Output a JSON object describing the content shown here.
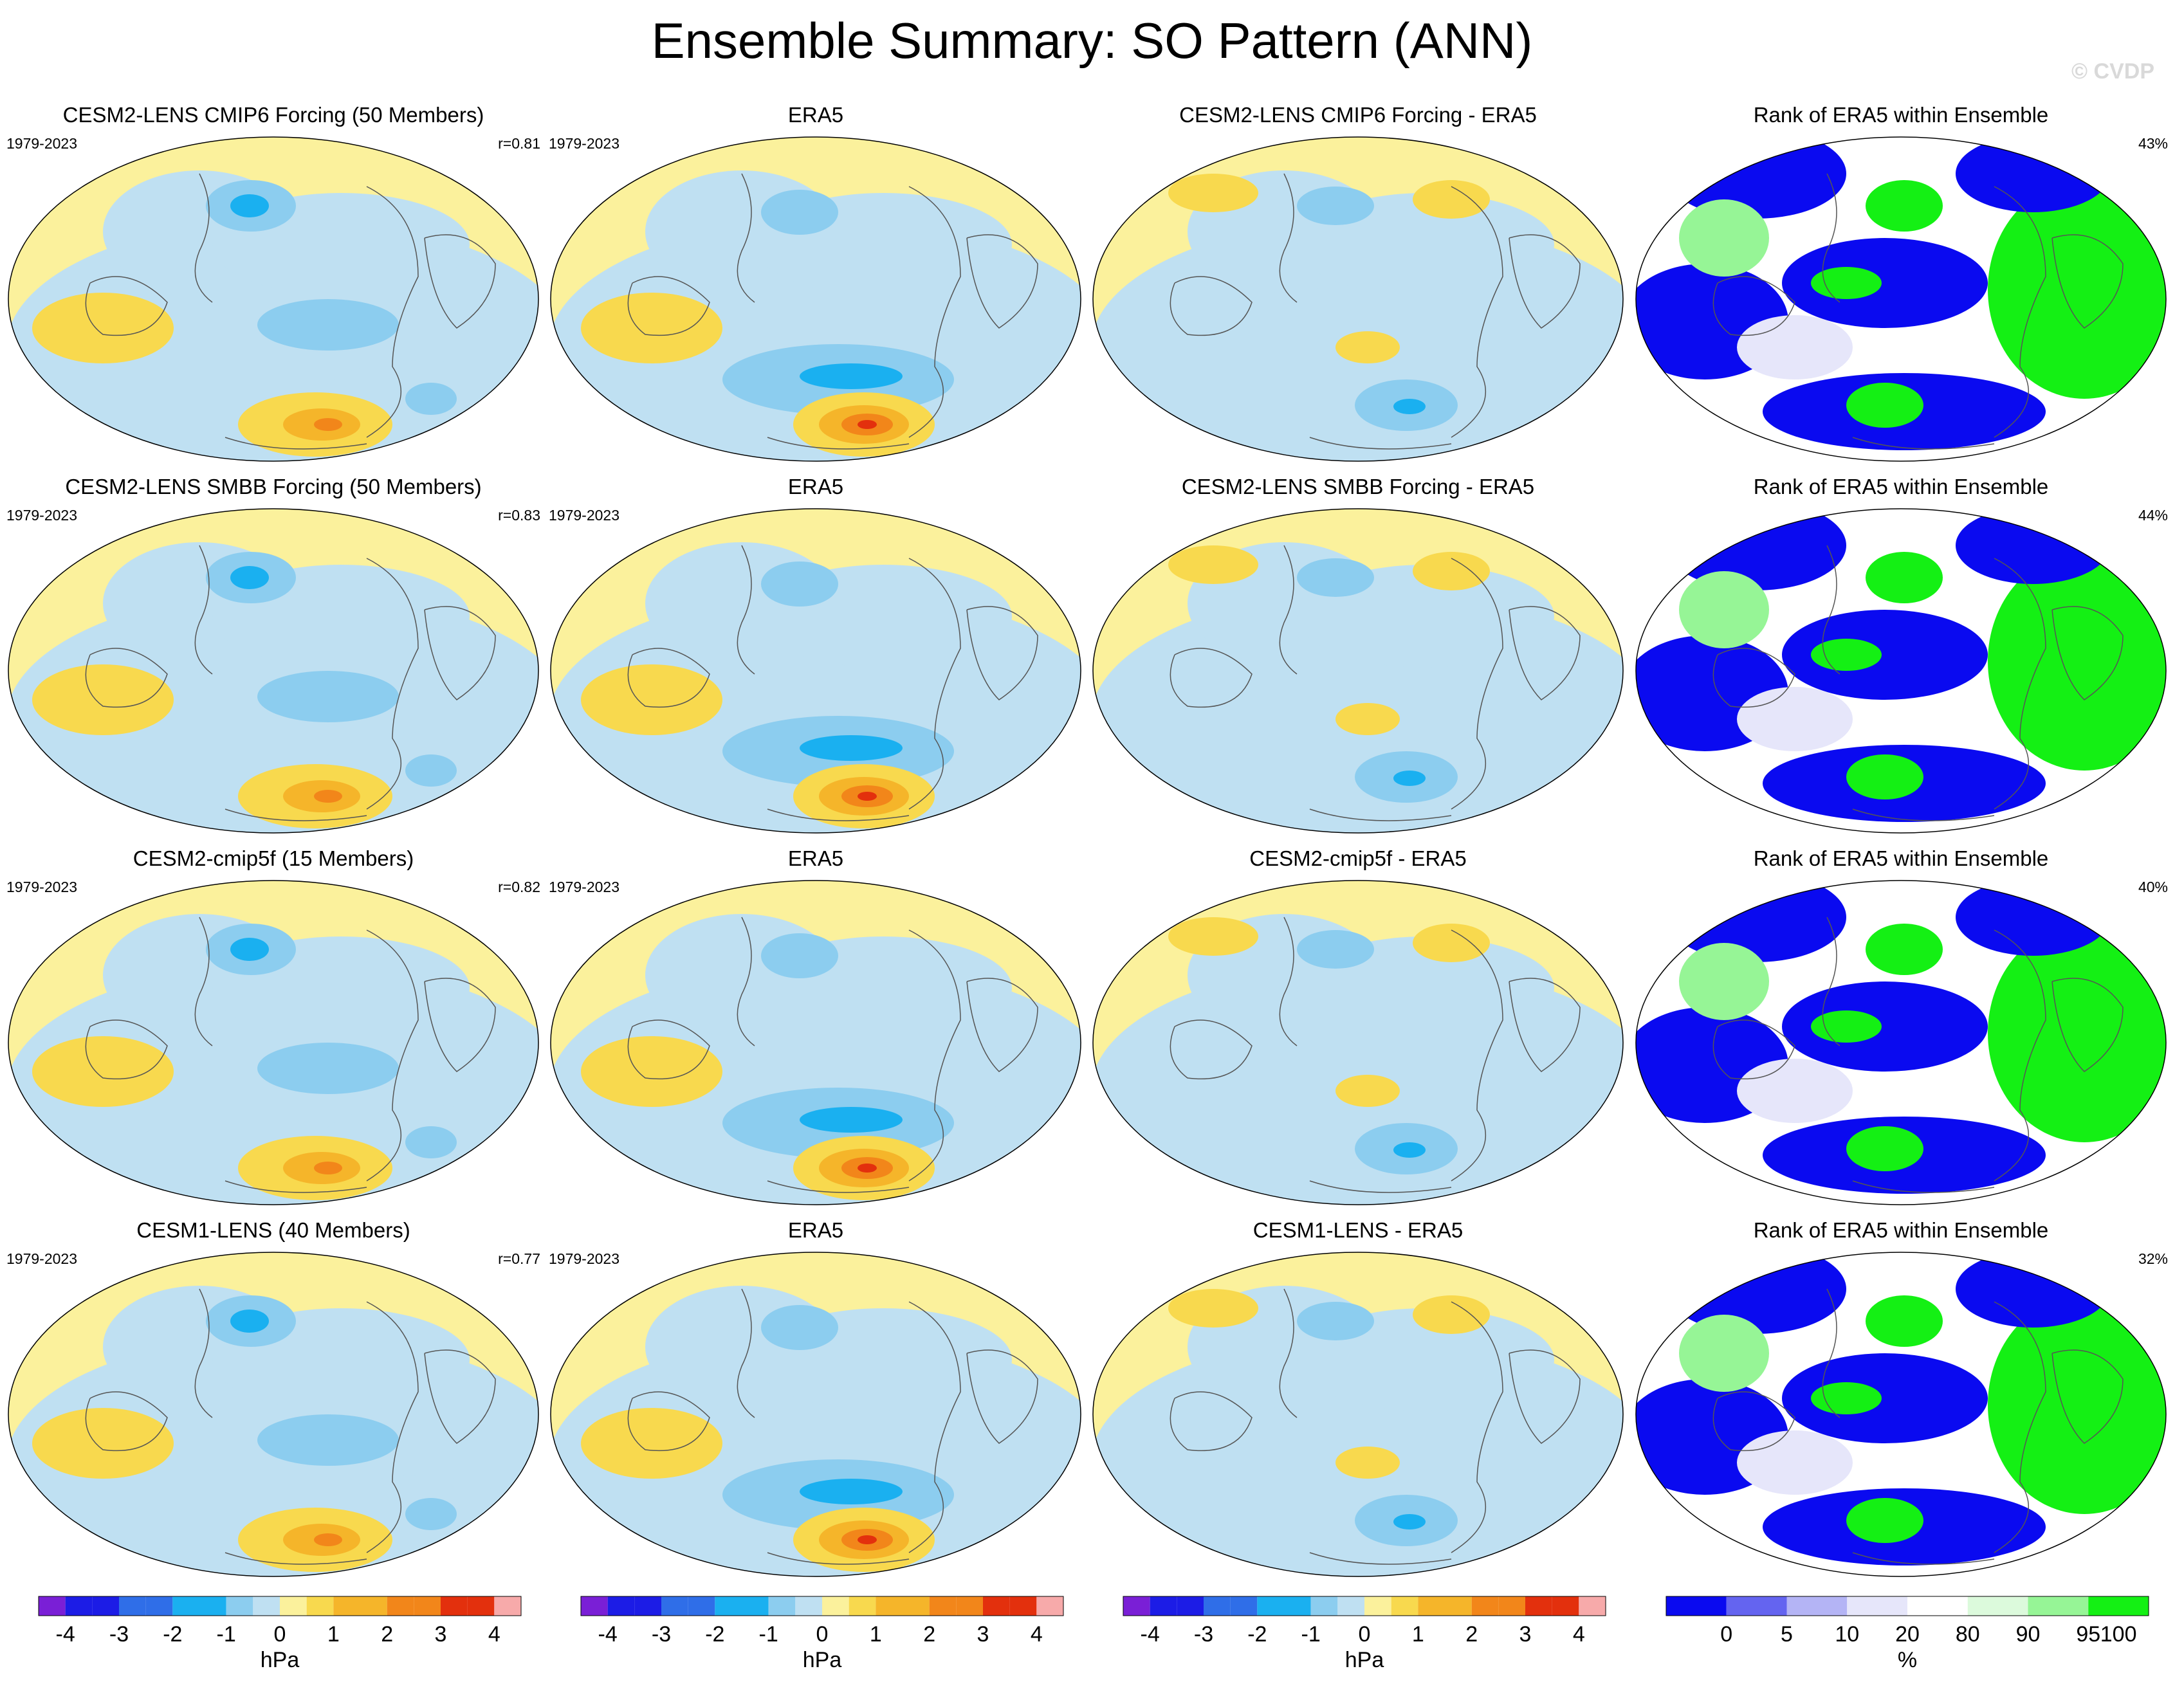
{
  "title": "Ensemble Summary: SO Pattern (ANN)",
  "watermark": "© CVDP",
  "colors": {
    "neg4": "#7a1fd6",
    "neg3": "#1c1ce6",
    "neg2": "#2f6ee8",
    "neg1": "#1ab0f0",
    "neg05": "#8ccdef",
    "neg01": "#bfe0f2",
    "pos01": "#fbf19c",
    "pos05": "#f8d94e",
    "pos1": "#f5b52a",
    "pos2": "#f2861a",
    "pos3": "#e3300d",
    "pos4": "#f7aaaa",
    "rank0": "#0a0af0",
    "rank5": "#6464f0",
    "rank10": "#b4b4f5",
    "rank20": "#e6e6fa",
    "rank80": "#ffffff",
    "rank90": "#dcfadc",
    "rank95": "#96f596",
    "rank100": "#14f014"
  },
  "rows": [
    {
      "model": "CESM2-LENS CMIP6 Forcing (50 Members)",
      "years": "1979-2023",
      "r": "r=0.81",
      "obs": "ERA5",
      "obs_years": "1979-2023",
      "diff": "CESM2-LENS CMIP6 Forcing - ERA5",
      "rank": "Rank of ERA5 within Ensemble",
      "rank_pct": "43%"
    },
    {
      "model": "CESM2-LENS SMBB Forcing (50 Members)",
      "years": "1979-2023",
      "r": "r=0.83",
      "obs": "ERA5",
      "obs_years": "1979-2023",
      "diff": "CESM2-LENS SMBB Forcing - ERA5",
      "rank": "Rank of ERA5 within Ensemble",
      "rank_pct": "44%"
    },
    {
      "model": "CESM2-cmip5f (15 Members)",
      "years": "1979-2023",
      "r": "r=0.82",
      "obs": "ERA5",
      "obs_years": "1979-2023",
      "diff": "CESM2-cmip5f - ERA5",
      "rank": "Rank of ERA5 within Ensemble",
      "rank_pct": "40%"
    },
    {
      "model": "CESM1-LENS (40 Members)",
      "years": "1979-2023",
      "r": "r=0.77",
      "obs": "ERA5",
      "obs_years": "1979-2023",
      "diff": "CESM1-LENS - ERA5",
      "rank": "Rank of ERA5 within Ensemble",
      "rank_pct": "32%"
    }
  ],
  "chart_data": {
    "type": "heatmap",
    "projection": "Robinson, Pacific-centred global maps",
    "colorbars": [
      {
        "unit": "hPa",
        "ticks": [
          "-4",
          "-3",
          "-2",
          "-1",
          "0",
          "1",
          "2",
          "3",
          "4"
        ]
      },
      {
        "unit": "hPa",
        "ticks": [
          "-4",
          "-3",
          "-2",
          "-1",
          "0",
          "1",
          "2",
          "3",
          "4"
        ]
      },
      {
        "unit": "hPa",
        "ticks": [
          "-4",
          "-3",
          "-2",
          "-1",
          "0",
          "1",
          "2",
          "3",
          "4"
        ]
      },
      {
        "unit": "%",
        "ticks": [
          "0",
          "5",
          "10",
          "20",
          "80",
          "90",
          "95",
          "100"
        ]
      }
    ],
    "pressure_levels": [
      -4,
      -3.5,
      -3,
      -2.5,
      -2,
      -1.5,
      -1,
      -0.5,
      0,
      0.5,
      1,
      1.5,
      2,
      2.5,
      3,
      3.5,
      4
    ],
    "rank_levels": [
      0,
      5,
      10,
      20,
      80,
      90,
      95,
      100
    ],
    "pattern_correlations": [
      0.81,
      0.83,
      0.82,
      0.77
    ],
    "rank_percent": [
      43,
      44,
      40,
      32
    ]
  }
}
